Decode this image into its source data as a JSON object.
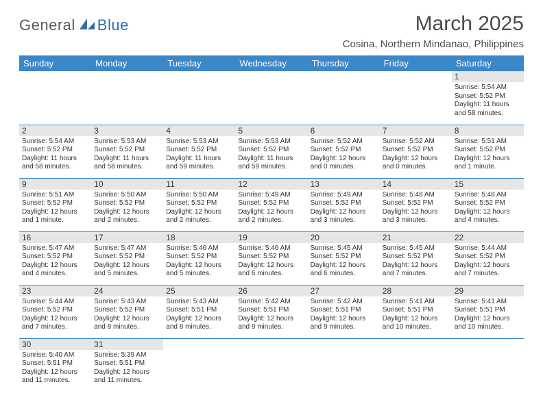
{
  "logo": {
    "word1": "General",
    "word2": "Blue"
  },
  "title": "March 2025",
  "location": "Cosina, Northern Mindanao, Philippines",
  "day_headers": [
    "Sunday",
    "Monday",
    "Tuesday",
    "Wednesday",
    "Thursday",
    "Friday",
    "Saturday"
  ],
  "colors": {
    "header_bg": "#3b87c8",
    "header_fg": "#ffffff",
    "daynum_bg": "#e6e6e6",
    "border": "#3b87c8",
    "text": "#333333",
    "brand_gray": "#5a5a5a",
    "brand_blue": "#2f6fa8"
  },
  "weeks": [
    [
      null,
      null,
      null,
      null,
      null,
      null,
      {
        "n": "1",
        "sunrise": "Sunrise: 5:54 AM",
        "sunset": "Sunset: 5:52 PM",
        "daylight": "Daylight: 11 hours and 58 minutes."
      }
    ],
    [
      {
        "n": "2",
        "sunrise": "Sunrise: 5:54 AM",
        "sunset": "Sunset: 5:52 PM",
        "daylight": "Daylight: 11 hours and 58 minutes."
      },
      {
        "n": "3",
        "sunrise": "Sunrise: 5:53 AM",
        "sunset": "Sunset: 5:52 PM",
        "daylight": "Daylight: 11 hours and 58 minutes."
      },
      {
        "n": "4",
        "sunrise": "Sunrise: 5:53 AM",
        "sunset": "Sunset: 5:52 PM",
        "daylight": "Daylight: 11 hours and 59 minutes."
      },
      {
        "n": "5",
        "sunrise": "Sunrise: 5:53 AM",
        "sunset": "Sunset: 5:52 PM",
        "daylight": "Daylight: 11 hours and 59 minutes."
      },
      {
        "n": "6",
        "sunrise": "Sunrise: 5:52 AM",
        "sunset": "Sunset: 5:52 PM",
        "daylight": "Daylight: 12 hours and 0 minutes."
      },
      {
        "n": "7",
        "sunrise": "Sunrise: 5:52 AM",
        "sunset": "Sunset: 5:52 PM",
        "daylight": "Daylight: 12 hours and 0 minutes."
      },
      {
        "n": "8",
        "sunrise": "Sunrise: 5:51 AM",
        "sunset": "Sunset: 5:52 PM",
        "daylight": "Daylight: 12 hours and 1 minute."
      }
    ],
    [
      {
        "n": "9",
        "sunrise": "Sunrise: 5:51 AM",
        "sunset": "Sunset: 5:52 PM",
        "daylight": "Daylight: 12 hours and 1 minute."
      },
      {
        "n": "10",
        "sunrise": "Sunrise: 5:50 AM",
        "sunset": "Sunset: 5:52 PM",
        "daylight": "Daylight: 12 hours and 2 minutes."
      },
      {
        "n": "11",
        "sunrise": "Sunrise: 5:50 AM",
        "sunset": "Sunset: 5:52 PM",
        "daylight": "Daylight: 12 hours and 2 minutes."
      },
      {
        "n": "12",
        "sunrise": "Sunrise: 5:49 AM",
        "sunset": "Sunset: 5:52 PM",
        "daylight": "Daylight: 12 hours and 2 minutes."
      },
      {
        "n": "13",
        "sunrise": "Sunrise: 5:49 AM",
        "sunset": "Sunset: 5:52 PM",
        "daylight": "Daylight: 12 hours and 3 minutes."
      },
      {
        "n": "14",
        "sunrise": "Sunrise: 5:48 AM",
        "sunset": "Sunset: 5:52 PM",
        "daylight": "Daylight: 12 hours and 3 minutes."
      },
      {
        "n": "15",
        "sunrise": "Sunrise: 5:48 AM",
        "sunset": "Sunset: 5:52 PM",
        "daylight": "Daylight: 12 hours and 4 minutes."
      }
    ],
    [
      {
        "n": "16",
        "sunrise": "Sunrise: 5:47 AM",
        "sunset": "Sunset: 5:52 PM",
        "daylight": "Daylight: 12 hours and 4 minutes."
      },
      {
        "n": "17",
        "sunrise": "Sunrise: 5:47 AM",
        "sunset": "Sunset: 5:52 PM",
        "daylight": "Daylight: 12 hours and 5 minutes."
      },
      {
        "n": "18",
        "sunrise": "Sunrise: 5:46 AM",
        "sunset": "Sunset: 5:52 PM",
        "daylight": "Daylight: 12 hours and 5 minutes."
      },
      {
        "n": "19",
        "sunrise": "Sunrise: 5:46 AM",
        "sunset": "Sunset: 5:52 PM",
        "daylight": "Daylight: 12 hours and 6 minutes."
      },
      {
        "n": "20",
        "sunrise": "Sunrise: 5:45 AM",
        "sunset": "Sunset: 5:52 PM",
        "daylight": "Daylight: 12 hours and 6 minutes."
      },
      {
        "n": "21",
        "sunrise": "Sunrise: 5:45 AM",
        "sunset": "Sunset: 5:52 PM",
        "daylight": "Daylight: 12 hours and 7 minutes."
      },
      {
        "n": "22",
        "sunrise": "Sunrise: 5:44 AM",
        "sunset": "Sunset: 5:52 PM",
        "daylight": "Daylight: 12 hours and 7 minutes."
      }
    ],
    [
      {
        "n": "23",
        "sunrise": "Sunrise: 5:44 AM",
        "sunset": "Sunset: 5:52 PM",
        "daylight": "Daylight: 12 hours and 7 minutes."
      },
      {
        "n": "24",
        "sunrise": "Sunrise: 5:43 AM",
        "sunset": "Sunset: 5:52 PM",
        "daylight": "Daylight: 12 hours and 8 minutes."
      },
      {
        "n": "25",
        "sunrise": "Sunrise: 5:43 AM",
        "sunset": "Sunset: 5:51 PM",
        "daylight": "Daylight: 12 hours and 8 minutes."
      },
      {
        "n": "26",
        "sunrise": "Sunrise: 5:42 AM",
        "sunset": "Sunset: 5:51 PM",
        "daylight": "Daylight: 12 hours and 9 minutes."
      },
      {
        "n": "27",
        "sunrise": "Sunrise: 5:42 AM",
        "sunset": "Sunset: 5:51 PM",
        "daylight": "Daylight: 12 hours and 9 minutes."
      },
      {
        "n": "28",
        "sunrise": "Sunrise: 5:41 AM",
        "sunset": "Sunset: 5:51 PM",
        "daylight": "Daylight: 12 hours and 10 minutes."
      },
      {
        "n": "29",
        "sunrise": "Sunrise: 5:41 AM",
        "sunset": "Sunset: 5:51 PM",
        "daylight": "Daylight: 12 hours and 10 minutes."
      }
    ],
    [
      {
        "n": "30",
        "sunrise": "Sunrise: 5:40 AM",
        "sunset": "Sunset: 5:51 PM",
        "daylight": "Daylight: 12 hours and 11 minutes."
      },
      {
        "n": "31",
        "sunrise": "Sunrise: 5:39 AM",
        "sunset": "Sunset: 5:51 PM",
        "daylight": "Daylight: 12 hours and 11 minutes."
      },
      null,
      null,
      null,
      null,
      null
    ]
  ]
}
